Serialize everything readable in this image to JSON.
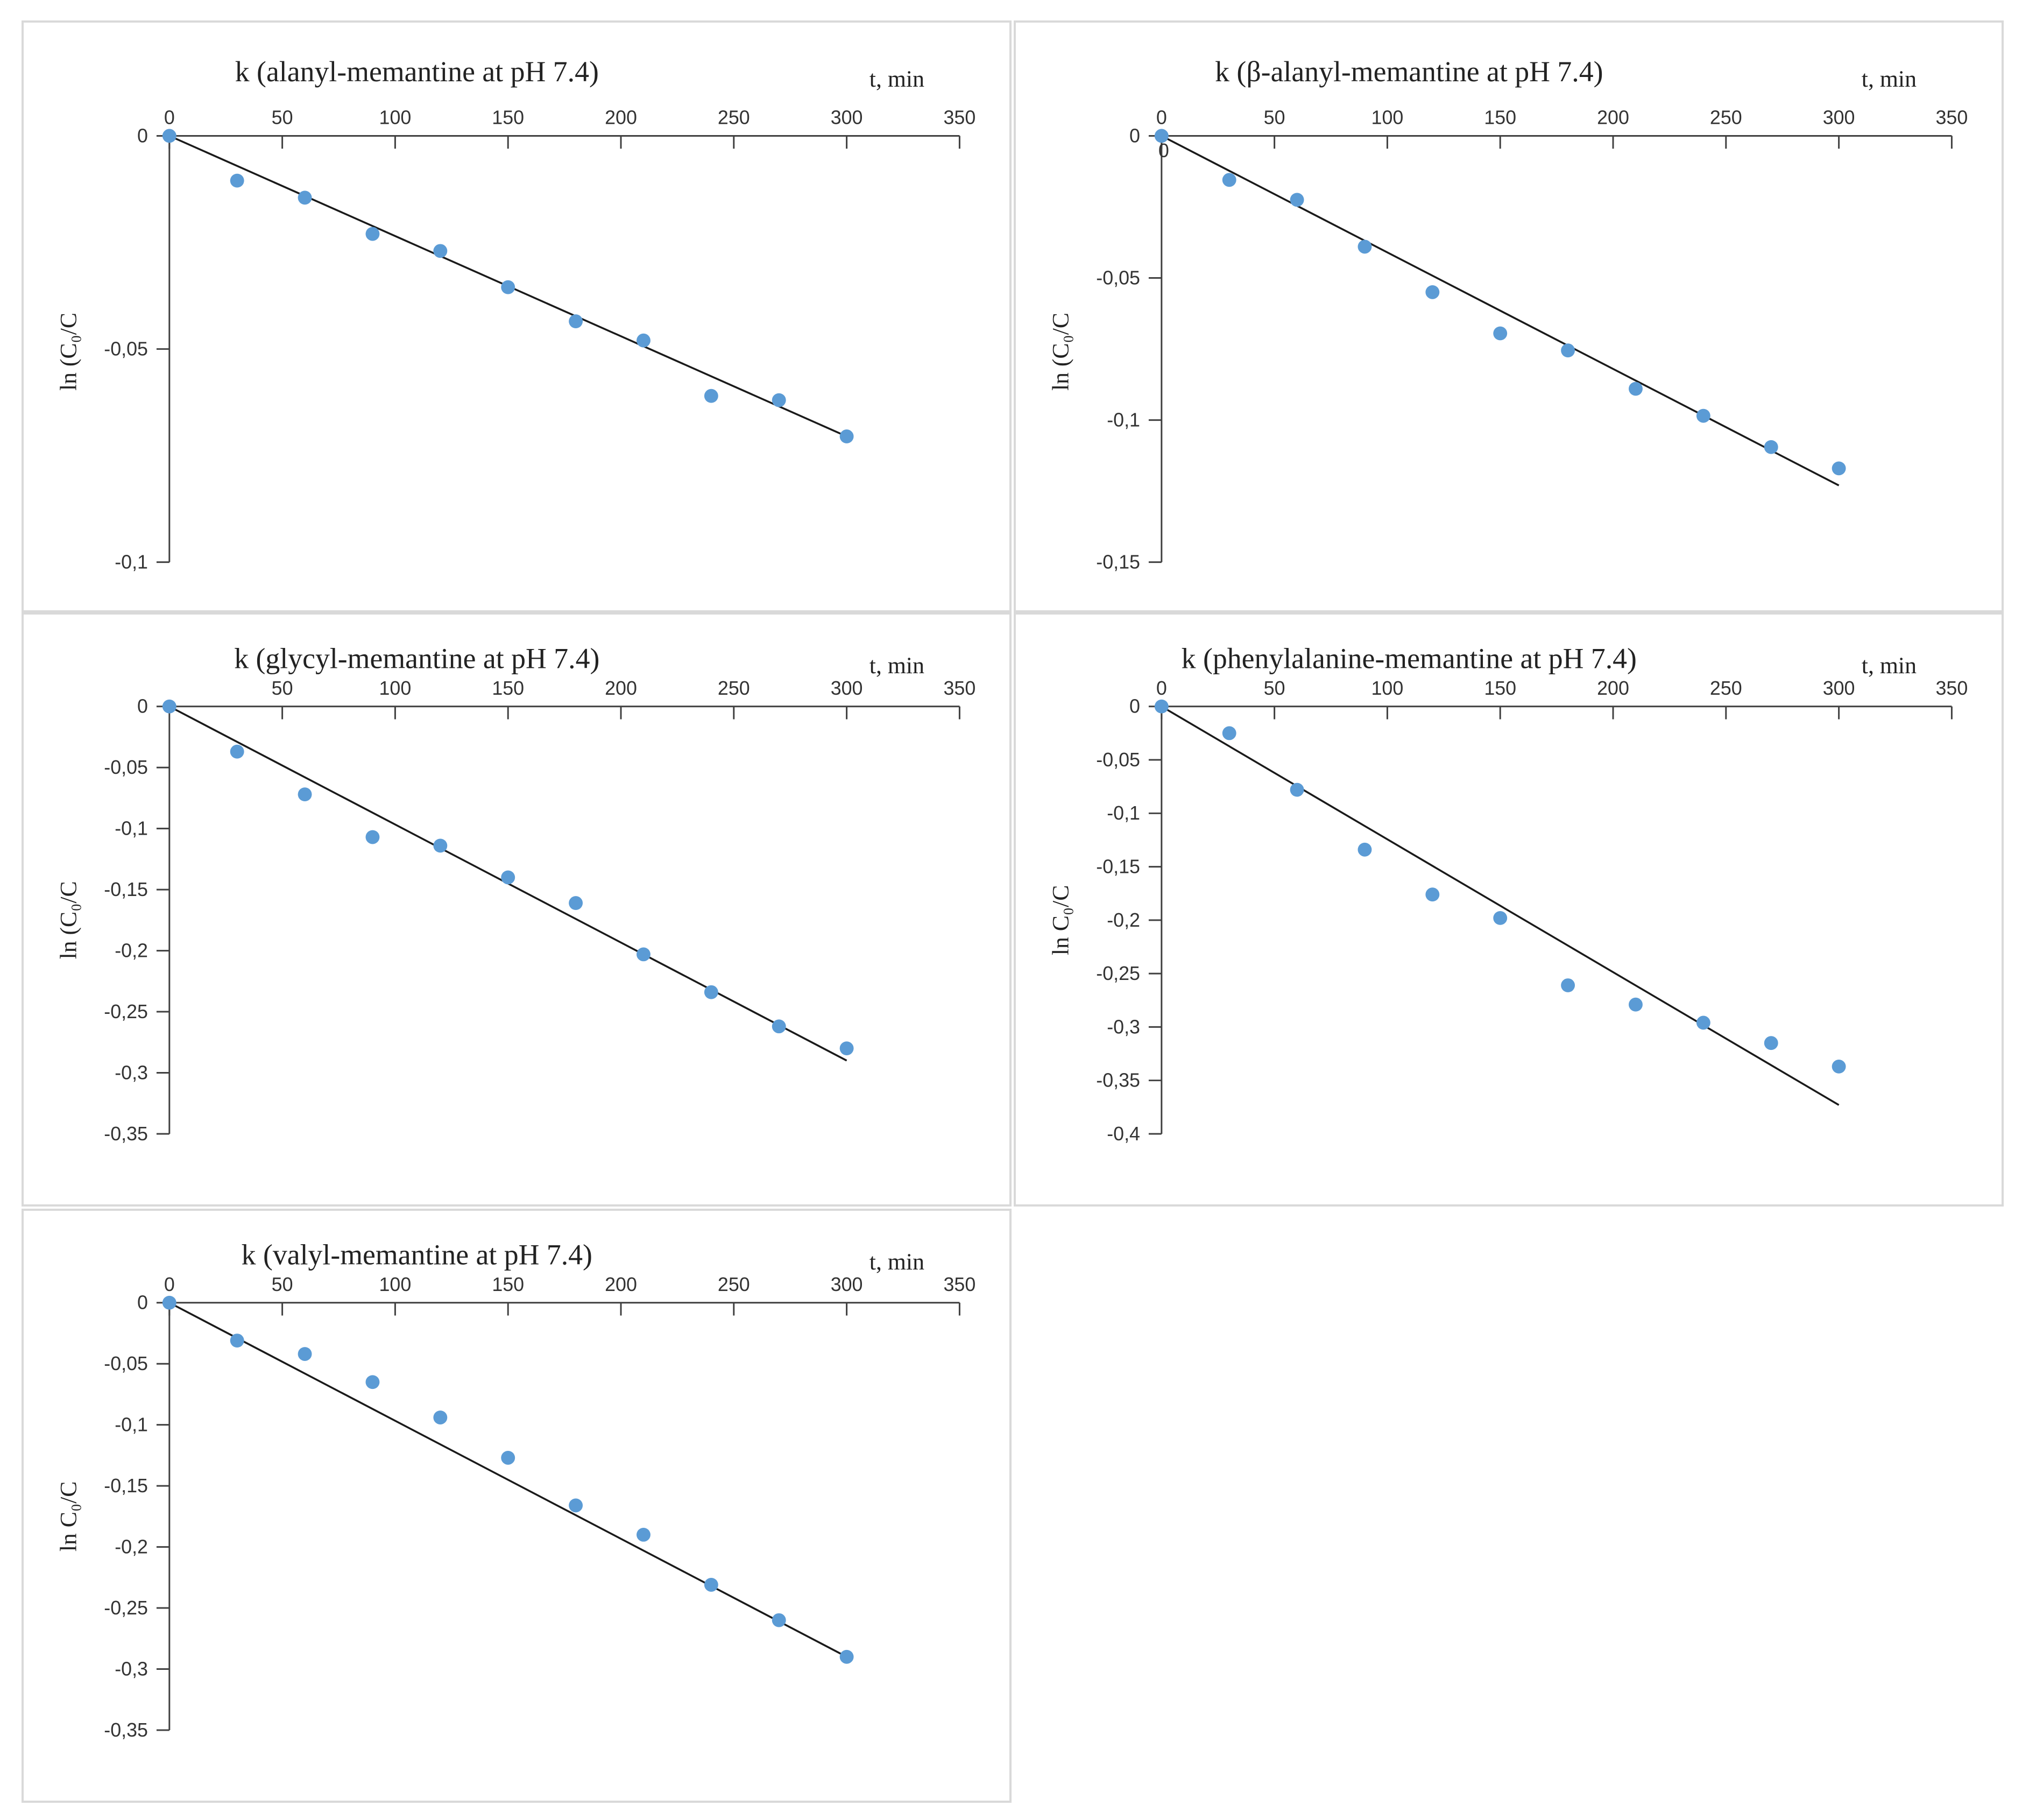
{
  "colors": {
    "point": "#5b9bd5",
    "line": "#1a1a1a",
    "axis": "#404040"
  },
  "chart_data": [
    {
      "type": "scatter",
      "title": "k (alanyl-memantine at pH 7.4)",
      "xlabel": "t, min",
      "ylabel": "ln (C₀/C",
      "xlim": [
        0,
        350
      ],
      "ylim": [
        -0.1,
        0
      ],
      "xticks": [
        0,
        50,
        100,
        150,
        200,
        250,
        300,
        350
      ],
      "xtick_labels": [
        "0",
        "50",
        "100",
        "150",
        "200",
        "250",
        "300",
        "350"
      ],
      "yticks": [
        0,
        -0.05,
        -0.1
      ],
      "ytick_labels": [
        "0",
        "-0,05",
        "-0,1"
      ],
      "x": [
        0,
        30,
        60,
        90,
        120,
        150,
        180,
        210,
        240,
        270,
        300
      ],
      "y": [
        0,
        -0.0105,
        -0.0145,
        -0.023,
        -0.027,
        -0.0355,
        -0.0435,
        -0.048,
        -0.061,
        -0.062,
        -0.0705
      ],
      "trendline": {
        "x": [
          0,
          300
        ],
        "y": [
          0,
          -0.0705
        ]
      }
    },
    {
      "type": "scatter",
      "title": "k (β-alanyl-memantine at pH 7.4)",
      "xlabel": "t, min",
      "ylabel": "ln (C₀/C",
      "xlim": [
        0,
        350
      ],
      "ylim": [
        -0.15,
        0
      ],
      "xticks": [
        0,
        50,
        100,
        150,
        200,
        250,
        300,
        350
      ],
      "xtick_labels": [
        "0",
        "50",
        "100",
        "150",
        "200",
        "250",
        "300",
        "350"
      ],
      "yticks": [
        0,
        -0.05,
        -0.1,
        -0.15
      ],
      "ytick_labels": [
        "0",
        "-0,05",
        "-0,1",
        "-0,15"
      ],
      "extra_label": "0",
      "x": [
        0,
        30,
        60,
        90,
        120,
        150,
        180,
        210,
        240,
        270,
        300
      ],
      "y": [
        0,
        -0.0155,
        -0.0225,
        -0.039,
        -0.055,
        -0.0695,
        -0.0755,
        -0.089,
        -0.0985,
        -0.1095,
        -0.117
      ],
      "trendline": {
        "x": [
          0,
          300
        ],
        "y": [
          0,
          -0.123
        ]
      }
    },
    {
      "type": "scatter",
      "title": "k (glycyl-memantine at pH 7.4)",
      "xlabel": "t, min",
      "ylabel": "ln (C₀/C",
      "xlim": [
        0,
        350
      ],
      "ylim": [
        -0.35,
        0
      ],
      "xticks": [
        50,
        100,
        150,
        200,
        250,
        300,
        350
      ],
      "xtick_labels": [
        "50",
        "100",
        "150",
        "200",
        "250",
        "300",
        "350"
      ],
      "yticks": [
        0,
        -0.05,
        -0.1,
        -0.15,
        -0.2,
        -0.25,
        -0.3,
        -0.35
      ],
      "ytick_labels": [
        "0",
        "-0,05",
        "-0,1",
        "-0,15",
        "-0,2",
        "-0,25",
        "-0,3",
        "-0,35"
      ],
      "x": [
        0,
        30,
        60,
        90,
        120,
        150,
        180,
        210,
        240,
        270,
        300
      ],
      "y": [
        0,
        -0.037,
        -0.072,
        -0.107,
        -0.114,
        -0.14,
        -0.161,
        -0.203,
        -0.234,
        -0.262,
        -0.28
      ],
      "trendline": {
        "x": [
          0,
          300
        ],
        "y": [
          0,
          -0.29
        ]
      }
    },
    {
      "type": "scatter",
      "title": "k (phenylalanine-memantine at pH 7.4)",
      "xlabel": "t, min",
      "ylabel": "ln C₀/C",
      "xlim": [
        0,
        350
      ],
      "ylim": [
        -0.4,
        0
      ],
      "xticks": [
        0,
        50,
        100,
        150,
        200,
        250,
        300,
        350
      ],
      "xtick_labels": [
        "0",
        "50",
        "100",
        "150",
        "200",
        "250",
        "300",
        "350"
      ],
      "yticks": [
        0,
        -0.05,
        -0.1,
        -0.15,
        -0.2,
        -0.25,
        -0.3,
        -0.35,
        -0.4
      ],
      "ytick_labels": [
        "0",
        "-0,05",
        "-0,1",
        "-0,15",
        "-0,2",
        "-0,25",
        "-0,3",
        "-0,35",
        "-0,4"
      ],
      "x": [
        0,
        30,
        60,
        90,
        120,
        150,
        180,
        210,
        240,
        270,
        300
      ],
      "y": [
        0,
        -0.025,
        -0.078,
        -0.134,
        -0.176,
        -0.198,
        -0.261,
        -0.279,
        -0.296,
        -0.315,
        -0.337
      ],
      "trendline": {
        "x": [
          0,
          300
        ],
        "y": [
          0,
          -0.373
        ]
      }
    },
    {
      "type": "scatter",
      "title": "k (valyl-memantine  at pH 7.4)",
      "xlabel": "t, min",
      "ylabel": "ln C₀/C",
      "xlim": [
        0,
        350
      ],
      "ylim": [
        -0.35,
        0
      ],
      "xticks": [
        0,
        50,
        100,
        150,
        200,
        250,
        300,
        350
      ],
      "xtick_labels": [
        "0",
        "50",
        "100",
        "150",
        "200",
        "250",
        "300",
        "350"
      ],
      "yticks": [
        0,
        -0.05,
        -0.1,
        -0.15,
        -0.2,
        -0.25,
        -0.3,
        -0.35
      ],
      "ytick_labels": [
        "0",
        "-0,05",
        "-0,1",
        "-0,15",
        "-0,2",
        "-0,25",
        "-0,3",
        "-0,35"
      ],
      "x": [
        0,
        30,
        60,
        90,
        120,
        150,
        180,
        210,
        240,
        270,
        300
      ],
      "y": [
        0,
        -0.031,
        -0.042,
        -0.065,
        -0.094,
        -0.127,
        -0.166,
        -0.19,
        -0.231,
        -0.26,
        -0.29
      ],
      "trendline": {
        "x": [
          0,
          300
        ],
        "y": [
          0,
          -0.29
        ]
      }
    }
  ]
}
